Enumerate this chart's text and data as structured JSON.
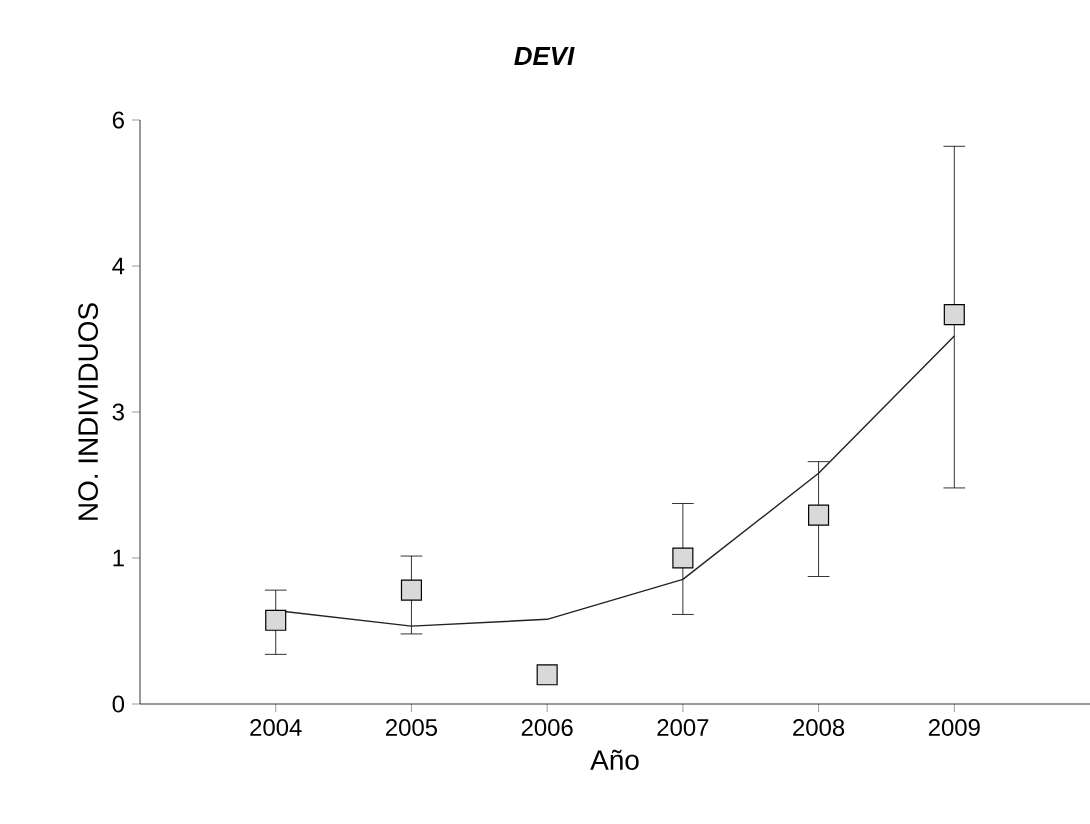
{
  "chart_data": {
    "type": "scatter",
    "title": "DEVI",
    "xlabel": "Año",
    "ylabel": "NO. INDIVIDUOS",
    "categories": [
      "2004",
      "2005",
      "2006",
      "2007",
      "2008",
      "2009"
    ],
    "ylim": [
      0,
      6
    ],
    "yticks": [
      0,
      {
        "value": 1.5,
        "label": "1"
      },
      3,
      {
        "value": 4.5,
        "label": "4"
      },
      6
    ],
    "series": [
      {
        "color": "#d9d9d9",
        "marker": "square",
        "values": [
          0.86,
          1.17,
          0.3,
          1.5,
          1.94,
          4.0
        ],
        "errors": [
          [
            0.51,
            1.17
          ],
          [
            0.72,
            1.52
          ],
          null,
          [
            0.92,
            2.06
          ],
          [
            1.31,
            2.49
          ],
          [
            2.22,
            5.73
          ]
        ]
      },
      {
        "type": "line",
        "color": "#222222",
        "marker": "none",
        "line_style": "solid",
        "values": [
          0.96,
          0.8,
          0.87,
          1.28,
          2.37,
          3.78
        ]
      }
    ]
  }
}
